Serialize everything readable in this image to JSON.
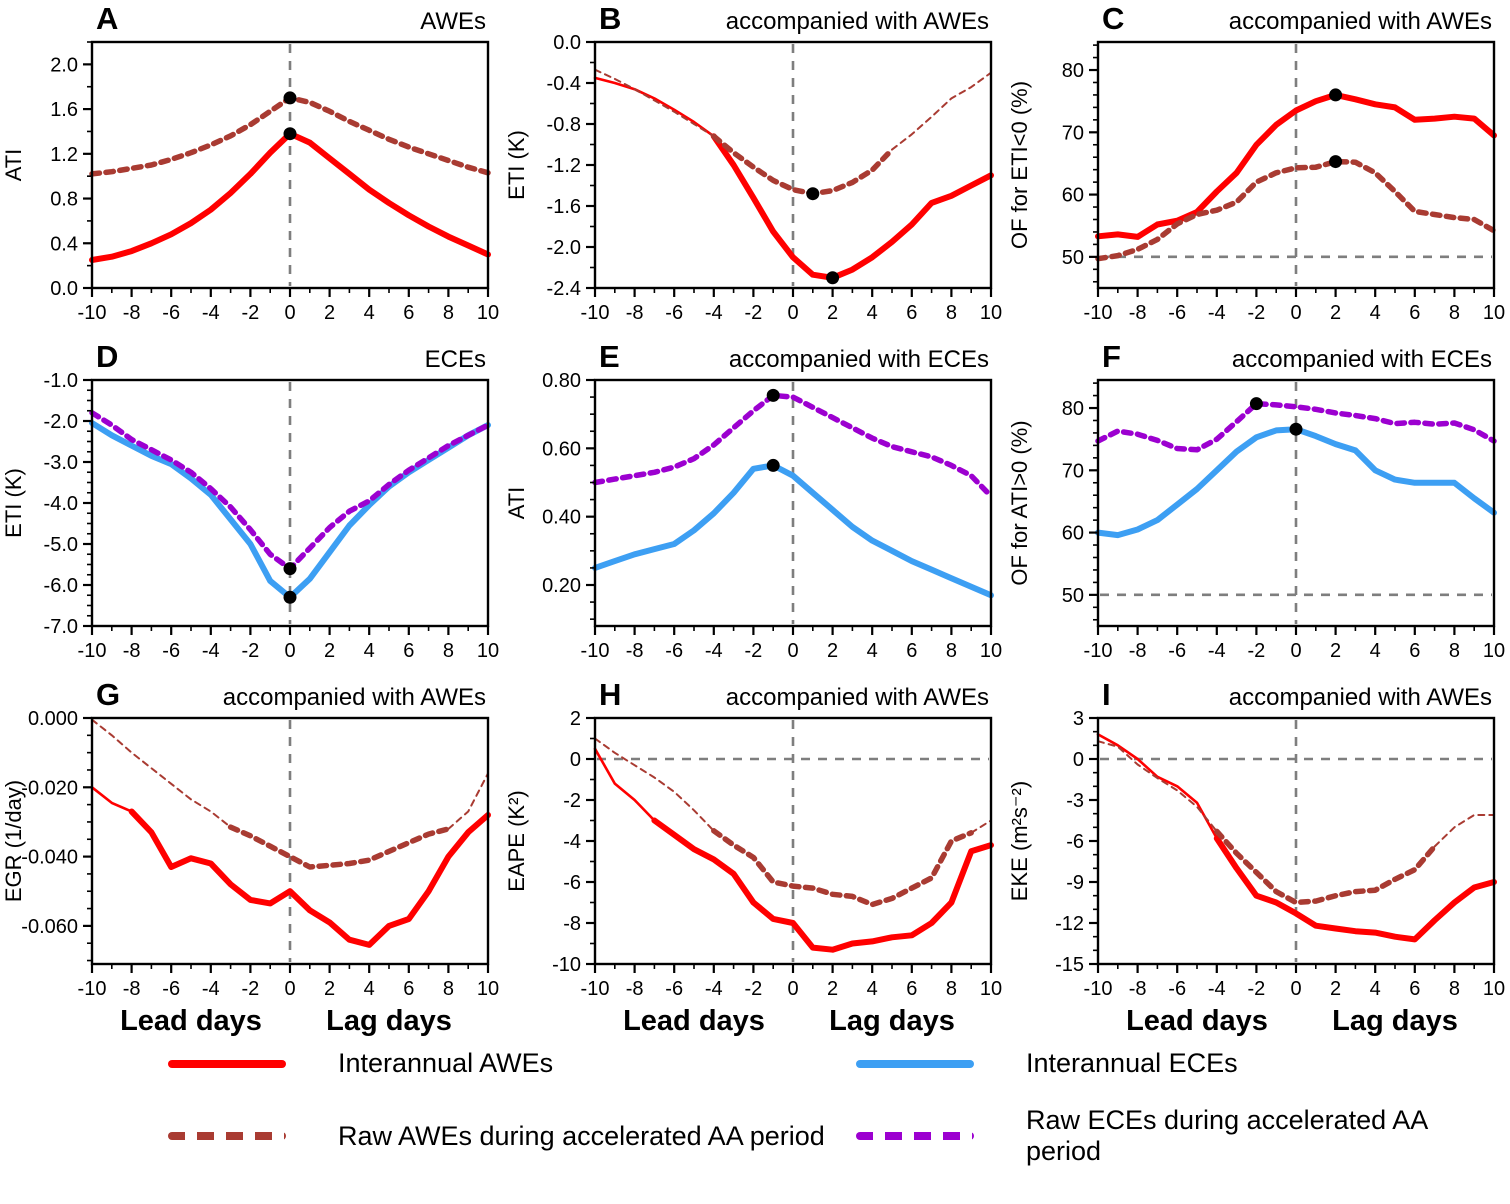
{
  "colors": {
    "interannual_awes": "#FF0000",
    "raw_awes": "#A93B32",
    "interannual_eces": "#3D9FF3",
    "raw_eces": "#9C00D0",
    "reference_line": "#7E7E7E",
    "marker": "#000000"
  },
  "axis": {
    "x_range": [
      -10,
      10
    ],
    "x_ticks": [
      -10,
      -8,
      -6,
      -4,
      -2,
      0,
      2,
      4,
      6,
      8,
      10
    ],
    "lead_label": "Lead days",
    "lag_label": "Lag days"
  },
  "legend": {
    "items": [
      {
        "label": "Interannual AWEs",
        "color_key": "interannual_awes",
        "style": "solid"
      },
      {
        "label": "Raw AWEs during accelerated AA period",
        "color_key": "raw_awes",
        "style": "dashed"
      },
      {
        "label": "Interannual ECEs",
        "color_key": "interannual_eces",
        "style": "solid"
      },
      {
        "label": "Raw ECEs during accelerated AA period",
        "color_key": "raw_eces",
        "style": "dashed"
      }
    ]
  },
  "chart_data": [
    {
      "id": "A",
      "type": "line",
      "title": "AWEs",
      "ylabel": "ATI",
      "x": [
        -10,
        -9,
        -8,
        -7,
        -6,
        -5,
        -4,
        -3,
        -2,
        -1,
        0,
        1,
        2,
        3,
        4,
        5,
        6,
        7,
        8,
        9,
        10
      ],
      "ylim": [
        0,
        2.2
      ],
      "yticks": [
        0.0,
        0.4,
        0.8,
        1.2,
        1.6,
        2.0
      ],
      "ytick_decimals": 1,
      "y_minor_step": 0.2,
      "vline": 0,
      "hline": null,
      "show_day_labels": false,
      "series": [
        {
          "name": "Interannual AWEs",
          "color_key": "interannual_awes",
          "style": "solid",
          "thick_range": [
            -10,
            10
          ],
          "values": [
            0.25,
            0.28,
            0.33,
            0.4,
            0.48,
            0.58,
            0.7,
            0.85,
            1.02,
            1.21,
            1.38,
            1.3,
            1.16,
            1.02,
            0.88,
            0.76,
            0.65,
            0.55,
            0.46,
            0.38,
            0.3
          ],
          "marker": {
            "x": 0,
            "y": 1.38
          }
        },
        {
          "name": "Raw AWEs during accelerated AA period",
          "color_key": "raw_awes",
          "style": "dashed",
          "thick_range": [
            -10,
            10
          ],
          "values": [
            1.02,
            1.04,
            1.07,
            1.1,
            1.15,
            1.21,
            1.28,
            1.36,
            1.46,
            1.58,
            1.7,
            1.66,
            1.58,
            1.49,
            1.41,
            1.33,
            1.26,
            1.2,
            1.14,
            1.08,
            1.03
          ],
          "marker": {
            "x": 0,
            "y": 1.7
          }
        }
      ]
    },
    {
      "id": "B",
      "type": "line",
      "title": "accompanied with AWEs",
      "ylabel": "ETI (K)",
      "x": [
        -10,
        -9,
        -8,
        -7,
        -6,
        -5,
        -4,
        -3,
        -2,
        -1,
        0,
        1,
        2,
        3,
        4,
        5,
        6,
        7,
        8,
        9,
        10
      ],
      "ylim": [
        -2.4,
        0.0
      ],
      "yticks": [
        0.0,
        -0.4,
        -0.8,
        -1.2,
        -1.6,
        -2.0,
        -2.4
      ],
      "ytick_decimals": 1,
      "y_minor_step": 0.2,
      "vline": 0,
      "hline": null,
      "show_day_labels": false,
      "series": [
        {
          "name": "Interannual AWEs",
          "color_key": "interannual_awes",
          "style": "solid",
          "thick_range": [
            -4,
            10
          ],
          "values": [
            -0.35,
            -0.4,
            -0.46,
            -0.55,
            -0.66,
            -0.78,
            -0.92,
            -1.2,
            -1.52,
            -1.85,
            -2.1,
            -2.27,
            -2.3,
            -2.22,
            -2.1,
            -1.95,
            -1.78,
            -1.57,
            -1.5,
            -1.4,
            -1.3
          ],
          "marker": {
            "x": 2,
            "y": -2.3
          }
        },
        {
          "name": "Raw AWEs during accelerated AA period",
          "color_key": "raw_awes",
          "style": "dashed",
          "thick_range": [
            -4,
            5
          ],
          "values": [
            -0.27,
            -0.36,
            -0.46,
            -0.57,
            -0.68,
            -0.8,
            -0.92,
            -1.08,
            -1.22,
            -1.35,
            -1.44,
            -1.48,
            -1.45,
            -1.37,
            -1.25,
            -1.05,
            -0.9,
            -0.73,
            -0.55,
            -0.44,
            -0.3
          ],
          "marker": {
            "x": 1,
            "y": -1.48
          }
        }
      ]
    },
    {
      "id": "C",
      "type": "line",
      "title": "accompanied with AWEs",
      "ylabel": "OF for ETI<0 (%)",
      "x": [
        -10,
        -9,
        -8,
        -7,
        -6,
        -5,
        -4,
        -3,
        -2,
        -1,
        0,
        1,
        2,
        3,
        4,
        5,
        6,
        7,
        8,
        9,
        10
      ],
      "ylim": [
        45,
        84.5
      ],
      "yticks": [
        50,
        60,
        70,
        80
      ],
      "ytick_decimals": 0,
      "y_minor_step": 2,
      "vline": 0,
      "hline": 50,
      "show_day_labels": false,
      "series": [
        {
          "name": "Interannual AWEs",
          "color_key": "interannual_awes",
          "style": "solid",
          "thick_range": [
            -10,
            10
          ],
          "values": [
            53.3,
            53.6,
            53.2,
            55.2,
            55.8,
            57.2,
            60.5,
            63.5,
            68.0,
            71.2,
            73.5,
            75.0,
            76.0,
            75.3,
            74.5,
            74.0,
            72.0,
            72.2,
            72.5,
            72.2,
            69.5
          ],
          "marker": {
            "x": 2,
            "y": 76.0
          }
        },
        {
          "name": "Raw AWEs during accelerated AA period",
          "color_key": "raw_awes",
          "style": "dashed",
          "thick_range": [
            -10,
            10
          ],
          "values": [
            49.7,
            50.2,
            51.2,
            52.8,
            55.3,
            56.8,
            57.5,
            58.8,
            62.0,
            63.5,
            64.3,
            64.4,
            65.3,
            65.2,
            63.5,
            60.5,
            57.3,
            56.8,
            56.3,
            56.0,
            54.2
          ],
          "marker": {
            "x": 2,
            "y": 65.3
          }
        }
      ]
    },
    {
      "id": "D",
      "type": "line",
      "title": "ECEs",
      "ylabel": "ETI (K)",
      "x": [
        -10,
        -9,
        -8,
        -7,
        -6,
        -5,
        -4,
        -3,
        -2,
        -1,
        0,
        1,
        2,
        3,
        4,
        5,
        6,
        7,
        8,
        9,
        10
      ],
      "ylim": [
        -7.0,
        -1.0
      ],
      "yticks": [
        -1.0,
        -2.0,
        -3.0,
        -4.0,
        -5.0,
        -6.0,
        -7.0
      ],
      "ytick_decimals": 1,
      "y_minor_step": 0.25,
      "vline": 0,
      "hline": null,
      "show_day_labels": false,
      "series": [
        {
          "name": "Interannual ECEs",
          "color_key": "interannual_eces",
          "style": "solid",
          "thick_range": [
            -10,
            10
          ],
          "values": [
            -2.05,
            -2.35,
            -2.6,
            -2.85,
            -3.05,
            -3.4,
            -3.8,
            -4.4,
            -5.0,
            -5.9,
            -6.3,
            -5.85,
            -5.2,
            -4.55,
            -4.05,
            -3.6,
            -3.25,
            -2.95,
            -2.65,
            -2.35,
            -2.1
          ],
          "marker": {
            "x": 0,
            "y": -6.3
          }
        },
        {
          "name": "Raw ECEs during accelerated AA period",
          "color_key": "raw_eces",
          "style": "dashed",
          "thick_range": [
            -10,
            10
          ],
          "values": [
            -1.8,
            -2.1,
            -2.45,
            -2.7,
            -2.95,
            -3.25,
            -3.65,
            -4.1,
            -4.65,
            -5.25,
            -5.6,
            -5.1,
            -4.6,
            -4.2,
            -3.95,
            -3.55,
            -3.2,
            -2.9,
            -2.6,
            -2.35,
            -2.1
          ],
          "marker": {
            "x": 0,
            "y": -5.6
          }
        }
      ]
    },
    {
      "id": "E",
      "type": "line",
      "title": "accompanied with ECEs",
      "ylabel": "ATI",
      "x": [
        -10,
        -9,
        -8,
        -7,
        -6,
        -5,
        -4,
        -3,
        -2,
        -1,
        0,
        1,
        2,
        3,
        4,
        5,
        6,
        7,
        8,
        9,
        10
      ],
      "ylim": [
        0.08,
        0.8
      ],
      "yticks": [
        0.2,
        0.4,
        0.6,
        0.8
      ],
      "ytick_decimals": 2,
      "y_minor_step": 0.05,
      "vline": 0,
      "hline": null,
      "show_day_labels": false,
      "series": [
        {
          "name": "Interannual ECEs",
          "color_key": "interannual_eces",
          "style": "solid",
          "thick_range": [
            -10,
            10
          ],
          "values": [
            0.25,
            0.27,
            0.29,
            0.305,
            0.32,
            0.36,
            0.41,
            0.47,
            0.54,
            0.55,
            0.52,
            0.47,
            0.42,
            0.37,
            0.33,
            0.3,
            0.27,
            0.245,
            0.22,
            0.195,
            0.17
          ],
          "marker": {
            "x": -1,
            "y": 0.55
          }
        },
        {
          "name": "Raw ECEs during accelerated AA period",
          "color_key": "raw_eces",
          "style": "dashed",
          "thick_range": [
            -10,
            10
          ],
          "values": [
            0.5,
            0.51,
            0.52,
            0.53,
            0.545,
            0.57,
            0.61,
            0.66,
            0.71,
            0.755,
            0.75,
            0.72,
            0.69,
            0.66,
            0.63,
            0.605,
            0.59,
            0.575,
            0.55,
            0.52,
            0.46
          ],
          "marker": {
            "x": -1,
            "y": 0.755
          }
        }
      ]
    },
    {
      "id": "F",
      "type": "line",
      "title": "accompanied with ECEs",
      "ylabel": "OF for ATI>0 (%)",
      "x": [
        -10,
        -9,
        -8,
        -7,
        -6,
        -5,
        -4,
        -3,
        -2,
        -1,
        0,
        1,
        2,
        3,
        4,
        5,
        6,
        7,
        8,
        9,
        10
      ],
      "ylim": [
        45,
        84.5
      ],
      "yticks": [
        50,
        60,
        70,
        80
      ],
      "ytick_decimals": 0,
      "y_minor_step": 2,
      "vline": 0,
      "hline": 50,
      "show_day_labels": false,
      "series": [
        {
          "name": "Interannual ECEs",
          "color_key": "interannual_eces",
          "style": "solid",
          "thick_range": [
            -10,
            10
          ],
          "values": [
            60.0,
            59.6,
            60.5,
            62.0,
            64.5,
            67.0,
            70.0,
            73.0,
            75.3,
            76.4,
            76.6,
            75.5,
            74.2,
            73.2,
            70.0,
            68.5,
            68.0,
            68.0,
            68.0,
            65.5,
            63.2
          ],
          "marker": {
            "x": 0,
            "y": 76.6
          }
        },
        {
          "name": "Raw ECEs during accelerated AA period",
          "color_key": "raw_eces",
          "style": "dashed",
          "thick_range": [
            -10,
            10
          ],
          "values": [
            74.7,
            76.3,
            75.8,
            74.8,
            73.5,
            73.3,
            75.0,
            77.8,
            80.7,
            80.5,
            80.2,
            79.8,
            79.2,
            78.8,
            78.3,
            77.5,
            77.7,
            77.4,
            77.6,
            76.5,
            74.7
          ],
          "marker": {
            "x": -2,
            "y": 80.7
          }
        }
      ]
    },
    {
      "id": "G",
      "type": "line",
      "title": "accompanied with AWEs",
      "ylabel": "EGR (1/day)",
      "x": [
        -10,
        -9,
        -8,
        -7,
        -6,
        -5,
        -4,
        -3,
        -2,
        -1,
        0,
        1,
        2,
        3,
        4,
        5,
        6,
        7,
        8,
        9,
        10
      ],
      "ylim": [
        -0.071,
        0.0
      ],
      "yticks": [
        0.0,
        -0.02,
        -0.04,
        -0.06
      ],
      "ytick_decimals": 3,
      "y_minor_step": 0.005,
      "vline": 0,
      "hline": null,
      "show_day_labels": true,
      "series": [
        {
          "name": "Interannual AWEs",
          "color_key": "interannual_awes",
          "style": "solid",
          "thick_range": [
            -8,
            10
          ],
          "values": [
            -0.02,
            -0.0245,
            -0.027,
            -0.033,
            -0.043,
            -0.0405,
            -0.042,
            -0.048,
            -0.0525,
            -0.0535,
            -0.05,
            -0.0555,
            -0.059,
            -0.064,
            -0.0655,
            -0.06,
            -0.058,
            -0.05,
            -0.04,
            -0.033,
            -0.028
          ],
          "marker": null
        },
        {
          "name": "Raw AWEs during accelerated AA period",
          "color_key": "raw_awes",
          "style": "dashed",
          "thick_range": [
            -3,
            8
          ],
          "values": [
            -0.0005,
            -0.005,
            -0.01,
            -0.0145,
            -0.019,
            -0.0235,
            -0.027,
            -0.0315,
            -0.034,
            -0.037,
            -0.04,
            -0.043,
            -0.0425,
            -0.042,
            -0.041,
            -0.0385,
            -0.036,
            -0.0335,
            -0.032,
            -0.027,
            -0.016
          ],
          "marker": null
        }
      ]
    },
    {
      "id": "H",
      "type": "line",
      "title": "accompanied with AWEs",
      "ylabel": "EAPE (K²)",
      "x": [
        -10,
        -9,
        -8,
        -7,
        -6,
        -5,
        -4,
        -3,
        -2,
        -1,
        0,
        1,
        2,
        3,
        4,
        5,
        6,
        7,
        8,
        9,
        10
      ],
      "ylim": [
        -10,
        2
      ],
      "yticks": [
        2,
        0,
        -2,
        -4,
        -6,
        -8,
        -10
      ],
      "ytick_decimals": 0,
      "y_minor_step": 1,
      "vline": 0,
      "hline": 0,
      "show_day_labels": true,
      "series": [
        {
          "name": "Interannual AWEs",
          "color_key": "interannual_awes",
          "style": "solid",
          "thick_range": [
            -7,
            10
          ],
          "values": [
            0.5,
            -1.2,
            -2.0,
            -3.0,
            -3.7,
            -4.4,
            -4.9,
            -5.6,
            -7.0,
            -7.8,
            -8.0,
            -9.2,
            -9.3,
            -9.0,
            -8.9,
            -8.7,
            -8.6,
            -8.0,
            -7.0,
            -4.5,
            -4.2
          ],
          "marker": null
        },
        {
          "name": "Raw AWEs during accelerated AA period",
          "color_key": "raw_awes",
          "style": "dashed",
          "thick_range": [
            -4,
            9
          ],
          "values": [
            1.0,
            0.3,
            -0.3,
            -0.9,
            -1.6,
            -2.5,
            -3.5,
            -4.2,
            -4.8,
            -6.0,
            -6.2,
            -6.3,
            -6.6,
            -6.7,
            -7.1,
            -6.8,
            -6.3,
            -5.8,
            -4.0,
            -3.6,
            -3.0
          ],
          "marker": null
        }
      ]
    },
    {
      "id": "I",
      "type": "line",
      "title": "accompanied with AWEs",
      "ylabel": "EKE (m²s⁻²)",
      "x": [
        -10,
        -9,
        -8,
        -7,
        -6,
        -5,
        -4,
        -3,
        -2,
        -1,
        0,
        1,
        2,
        3,
        4,
        5,
        6,
        7,
        8,
        9,
        10
      ],
      "ylim": [
        -15,
        3
      ],
      "yticks": [
        3,
        0,
        -3,
        -6,
        -9,
        -12,
        -15
      ],
      "ytick_decimals": 0,
      "y_minor_step": 1,
      "vline": 0,
      "hline": 0,
      "show_day_labels": true,
      "series": [
        {
          "name": "Interannual AWEs",
          "color_key": "interannual_awes",
          "style": "solid",
          "thick_range": [
            -4,
            10
          ],
          "values": [
            1.8,
            1.0,
            0.0,
            -1.3,
            -2.0,
            -3.2,
            -5.8,
            -8.0,
            -10.0,
            -10.5,
            -11.3,
            -12.2,
            -12.4,
            -12.6,
            -12.7,
            -13.0,
            -13.2,
            -11.8,
            -10.5,
            -9.4,
            -9.0
          ],
          "marker": null
        },
        {
          "name": "Raw AWEs during accelerated AA period",
          "color_key": "raw_awes",
          "style": "dashed",
          "thick_range": [
            -4,
            7
          ],
          "values": [
            1.3,
            0.9,
            -0.4,
            -1.4,
            -2.3,
            -3.5,
            -5.3,
            -6.9,
            -8.3,
            -9.7,
            -10.5,
            -10.4,
            -10.0,
            -9.7,
            -9.6,
            -8.8,
            -8.1,
            -6.4,
            -5.0,
            -4.1,
            -4.1
          ],
          "marker": null
        }
      ]
    }
  ]
}
